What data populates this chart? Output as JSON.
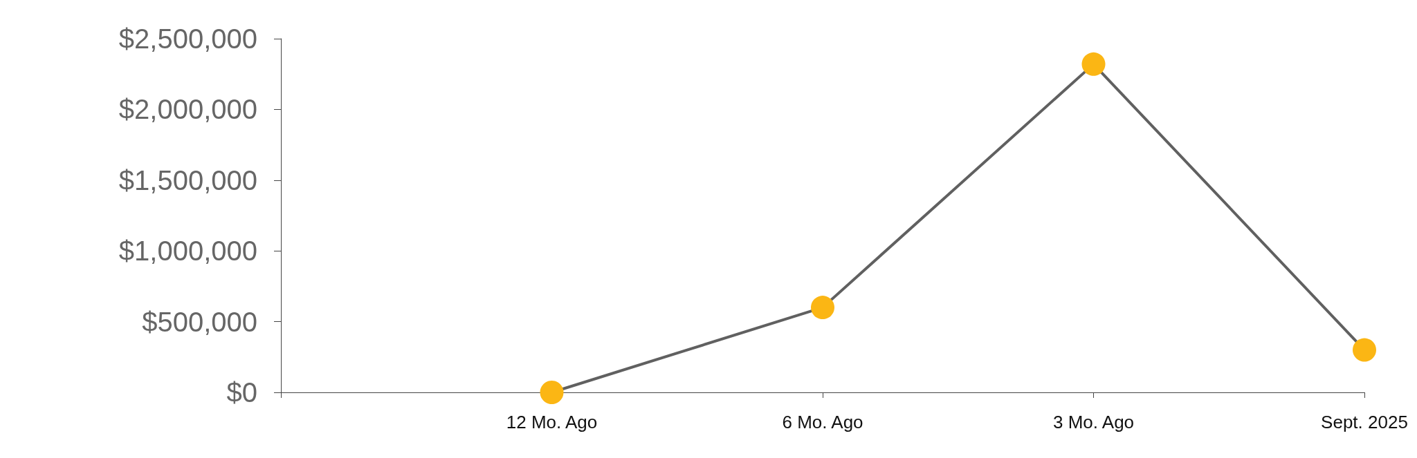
{
  "chart_data": {
    "type": "line",
    "categories": [
      null,
      "12 Mo. Ago",
      "6 Mo. Ago",
      "3 Mo. Ago",
      "Sept. 2025"
    ],
    "series": [
      {
        "color": "#fbb614",
        "values": [
          null,
          0,
          600000,
          2320000,
          300000
        ]
      }
    ],
    "ylim": [
      0,
      2500000
    ],
    "yticks": [
      {
        "value": 0,
        "label": "$0"
      },
      {
        "value": 500000,
        "label": "$500,000"
      },
      {
        "value": 1000000,
        "label": "$1,000,000"
      },
      {
        "value": 1500000,
        "label": "$1,500,000"
      },
      {
        "value": 2000000,
        "label": "$2,000,000"
      },
      {
        "value": 2500000,
        "label": "$2,500,000"
      }
    ],
    "grid": false,
    "marker": "circle",
    "line_style": "solid"
  }
}
